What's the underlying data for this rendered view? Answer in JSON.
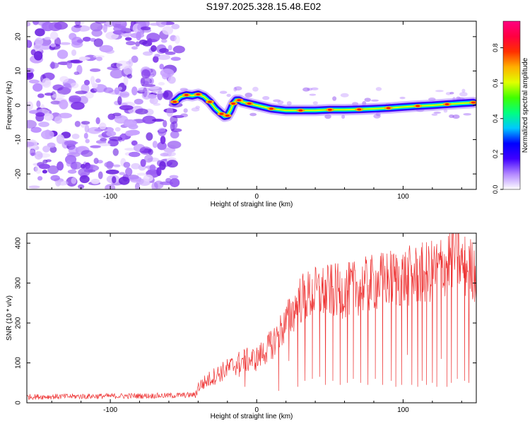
{
  "title": "S197.2025.328.15.48.E02",
  "chart_data": [
    {
      "type": "heatmap",
      "xlabel": "Height of straight line (km)",
      "ylabel": "Frequency (Hz)",
      "xlim": [
        -157,
        150
      ],
      "ylim": [
        -24.5,
        24.5
      ],
      "xticks": [
        -100,
        0,
        100
      ],
      "xtick_labels": [
        "-100",
        "0",
        "100"
      ],
      "yticks": [
        -20,
        -10,
        0,
        10,
        20
      ],
      "ytick_labels": [
        "-20",
        "-10",
        "0",
        "10",
        "20"
      ],
      "noise_region_x": [
        -157,
        -53
      ],
      "ridge": {
        "x": [
          -56,
          -52,
          -48,
          -44,
          -40,
          -36,
          -32,
          -28,
          -24,
          -22,
          -20,
          -18,
          -16,
          -14,
          -12,
          -10,
          -5,
          0,
          10,
          20,
          30,
          40,
          50,
          60,
          70,
          80,
          90,
          100,
          110,
          120,
          130,
          140,
          148
        ],
        "freq": [
          1.0,
          2.5,
          3.0,
          2.8,
          3.2,
          2.5,
          1.0,
          -1.0,
          -2.5,
          -3.2,
          -3.0,
          -1.5,
          0.5,
          1.5,
          1.5,
          1.0,
          0.5,
          0.0,
          -1.0,
          -1.5,
          -1.5,
          -1.5,
          -1.3,
          -1.3,
          -1.2,
          -1.0,
          -0.8,
          -0.5,
          -0.2,
          0.0,
          0.3,
          0.6,
          0.8
        ]
      },
      "colorbar": {
        "label": "Normalized spectral amplitude",
        "range": [
          0.0,
          0.95
        ],
        "ticks": [
          0.0,
          0.2,
          0.4,
          0.6,
          0.8
        ],
        "tick_labels": [
          "0.0",
          "0.2",
          "0.4",
          "0.6",
          "0.8"
        ]
      }
    },
    {
      "type": "line",
      "xlabel": "Height of straight line (km)",
      "ylabel": "SNR (10 * v/v)",
      "xlim": [
        -157,
        150
      ],
      "ylim": [
        0,
        425
      ],
      "xticks": [
        -100,
        0,
        100
      ],
      "xtick_labels": [
        "-100",
        "0",
        "100"
      ],
      "yticks": [
        0,
        100,
        200,
        300,
        400
      ],
      "ytick_labels": [
        "0",
        "100",
        "200",
        "300",
        "400"
      ],
      "color": "#ee3333",
      "trend": {
        "x": [
          -157,
          -60,
          -42,
          -40,
          -30,
          -20,
          -10,
          0,
          10,
          20,
          30,
          40,
          50,
          60,
          70,
          80,
          90,
          100,
          110,
          120,
          130,
          135,
          140,
          150
        ],
        "snr": [
          15,
          18,
          20,
          40,
          65,
          85,
          105,
          110,
          145,
          200,
          260,
          275,
          280,
          280,
          290,
          300,
          310,
          315,
          320,
          330,
          350,
          380,
          345,
          330
        ]
      },
      "dropout_x": [
        -12,
        -8,
        10,
        15,
        22,
        28,
        33,
        38,
        43,
        47,
        52,
        57,
        62,
        66,
        71,
        76,
        81,
        86,
        92,
        95,
        99,
        103,
        106,
        110,
        113,
        116,
        120,
        123,
        126,
        130,
        133,
        137,
        142,
        145
      ],
      "dropout_snr": [
        65,
        40,
        110,
        30,
        105,
        40,
        55,
        60,
        65,
        45,
        55,
        45,
        50,
        60,
        50,
        45,
        60,
        45,
        55,
        40,
        45,
        120,
        45,
        40,
        55,
        45,
        50,
        40,
        110,
        40,
        50,
        60,
        55,
        50
      ]
    }
  ],
  "colors": {
    "colorbar_stops": [
      "#ffffff",
      "#b388ff",
      "#4000ff",
      "#0000ff",
      "#00c8ff",
      "#00ff80",
      "#40ff00",
      "#e0ff00",
      "#ffb000",
      "#ff3000",
      "#ff0040",
      "#ff0080"
    ]
  }
}
